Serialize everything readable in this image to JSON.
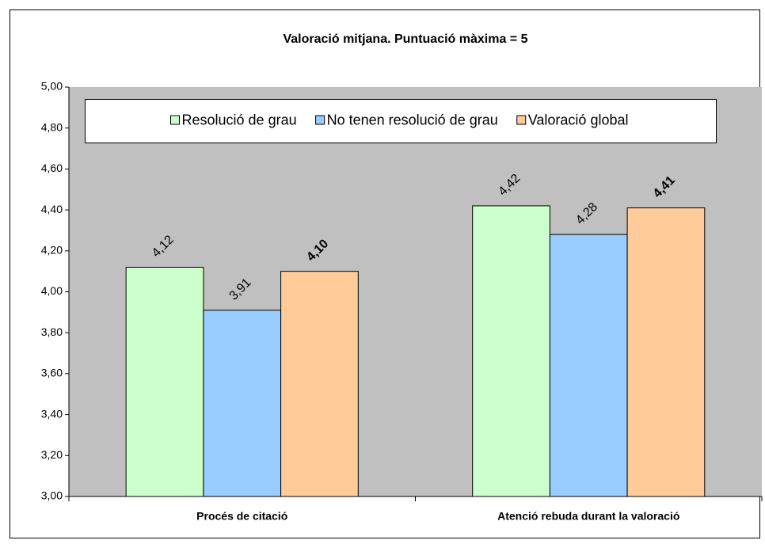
{
  "chart_data": {
    "type": "bar",
    "title": "Valoració mitjana. Puntuació màxima = 5",
    "categories": [
      "Procés de citació",
      "Atenció rebuda durant la valoració"
    ],
    "series": [
      {
        "name": "Resolució de grau",
        "color": "#ccffcc",
        "values": [
          4.12,
          4.42
        ],
        "value_labels": [
          "4,12",
          "4,42"
        ]
      },
      {
        "name": "No tenen resolució de grau",
        "color": "#99ccff",
        "values": [
          3.91,
          4.28
        ],
        "value_labels": [
          "3,91",
          "4,28"
        ]
      },
      {
        "name": "Valoració global",
        "color": "#ffcc99",
        "values": [
          4.1,
          4.41
        ],
        "value_labels": [
          "4,10",
          "4,41"
        ],
        "label_bold": true
      }
    ],
    "ylim": [
      3,
      5
    ],
    "yticks": [
      {
        "value": 3,
        "label": "3,00"
      },
      {
        "value": 3.2,
        "label": "3,20"
      },
      {
        "value": 3.4,
        "label": "3,40"
      },
      {
        "value": 3.6,
        "label": "3,60"
      },
      {
        "value": 3.8,
        "label": "3,80"
      },
      {
        "value": 4,
        "label": "4,00"
      },
      {
        "value": 4.2,
        "label": "4,20"
      },
      {
        "value": 4.4,
        "label": "4,40"
      },
      {
        "value": 4.6,
        "label": "4,60"
      },
      {
        "value": 4.8,
        "label": "4,80"
      },
      {
        "value": 5,
        "label": "5,00"
      }
    ],
    "legend": "top",
    "background": "#c0c0c0"
  }
}
